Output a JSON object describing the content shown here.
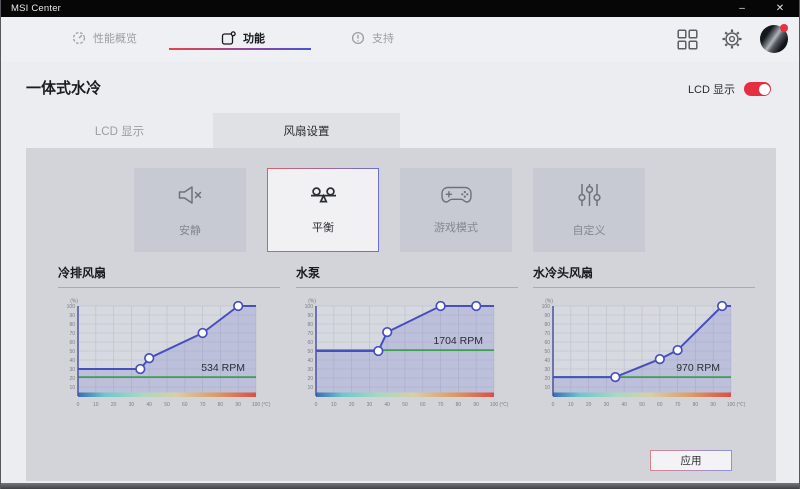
{
  "titlebar": {
    "title": "MSI Center",
    "minimize_label": "–",
    "close_label": "✕"
  },
  "nav": {
    "items": [
      {
        "label": "性能概览",
        "icon": "gauge-icon",
        "active": false
      },
      {
        "label": "功能",
        "icon": "feature-icon",
        "active": true
      },
      {
        "label": "支持",
        "icon": "support-icon",
        "active": false
      }
    ]
  },
  "header_icons": {
    "grid": "apps-grid-icon",
    "settings": "gear-icon",
    "avatar": "user-avatar-msi-badge"
  },
  "page": {
    "title": "一体式水冷",
    "lcd_toggle_label": "LCD 显示",
    "lcd_toggle_on": true
  },
  "tabs": {
    "items": [
      {
        "label": "LCD 显示",
        "active": false
      },
      {
        "label": "风扇设置",
        "active": true
      }
    ]
  },
  "modes": {
    "items": [
      {
        "label": "安静",
        "icon": "mute-speaker-icon",
        "selected": false
      },
      {
        "label": "平衡",
        "icon": "balance-scale-icon",
        "selected": true
      },
      {
        "label": "游戏模式",
        "icon": "gamepad-icon",
        "selected": false
      },
      {
        "label": "自定义",
        "icon": "sliders-icon",
        "selected": false
      }
    ]
  },
  "apply_label": "应用",
  "chart_axis": {
    "x_ticks": [
      0,
      10,
      20,
      30,
      40,
      50,
      60,
      70,
      80,
      90,
      100
    ],
    "y_ticks": [
      100,
      90,
      80,
      70,
      60,
      50,
      40,
      30,
      20,
      10
    ],
    "x_unit": "(℃)",
    "y_unit": "(%)",
    "x_range": [
      0,
      100
    ],
    "y_range": [
      0,
      100
    ],
    "grid": true
  },
  "chart_data": [
    {
      "type": "line",
      "name": "冷排风扇",
      "rpm_label": "534 RPM",
      "curve": [
        [
          0,
          30
        ],
        [
          35,
          30
        ],
        [
          40,
          42
        ],
        [
          70,
          70
        ],
        [
          90,
          100
        ],
        [
          100,
          100
        ]
      ],
      "markers": [
        [
          35,
          30
        ],
        [
          40,
          42
        ],
        [
          70,
          70
        ],
        [
          90,
          100
        ]
      ],
      "green_line": 21,
      "rpm_label_v": 28
    },
    {
      "type": "line",
      "name": "水泵",
      "rpm_label": "1704 RPM",
      "curve": [
        [
          0,
          50
        ],
        [
          35,
          50
        ],
        [
          40,
          71
        ],
        [
          70,
          100
        ],
        [
          100,
          100
        ]
      ],
      "markers": [
        [
          35,
          50
        ],
        [
          40,
          71
        ],
        [
          70,
          100
        ],
        [
          90,
          100
        ]
      ],
      "green_line": 51,
      "rpm_label_v": 58
    },
    {
      "type": "line",
      "name": "水冷头风扇",
      "rpm_label": "970 RPM",
      "curve": [
        [
          0,
          21
        ],
        [
          35,
          21
        ],
        [
          60,
          41
        ],
        [
          70,
          51
        ],
        [
          95,
          100
        ],
        [
          100,
          100
        ]
      ],
      "markers": [
        [
          35,
          21
        ],
        [
          60,
          41
        ],
        [
          70,
          51
        ],
        [
          95,
          100
        ]
      ],
      "green_line": 21,
      "rpm_label_v": 28
    }
  ],
  "colors": {
    "accent_red": "#e62e43",
    "underline_gradient": [
      "#e8414b",
      "#4a50d8"
    ],
    "curve_line": "#474fbe",
    "curve_fill": "#6b72c8",
    "marker_fill": "#ffffff",
    "green_line": "#3f9e52",
    "plot_bg": "#d7d9e1",
    "grid_line": "#c3c5cf",
    "tick_text": "#7a7d84",
    "rpm_text": "#2b2e35",
    "temp_gradient": [
      "#3b6cb0",
      "#6fc6cc",
      "#a8d8c2",
      "#d8cfa8",
      "#dd9a62",
      "#d94f45"
    ]
  }
}
